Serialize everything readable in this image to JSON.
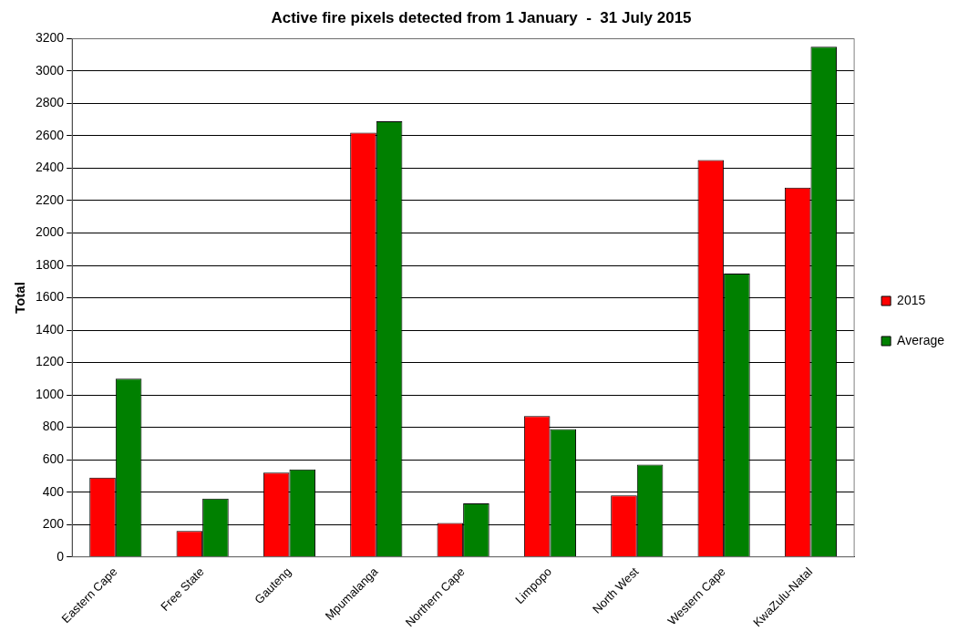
{
  "chart_data": {
    "type": "bar",
    "title": "Active fire pixels detected from 1 January  -  31 July 2015",
    "ylabel": "Total",
    "categories": [
      "Eastern Cape",
      "Free State",
      "Gauteng",
      "Mpumalanga",
      "Northern Cape",
      "Limpopo",
      "North West",
      "Western Cape",
      "KwaZulu-Natal"
    ],
    "series": [
      {
        "name": "2015",
        "color": "#ff0000",
        "values": [
          490,
          160,
          520,
          2620,
          210,
          870,
          380,
          2450,
          2280
        ]
      },
      {
        "name": "Average",
        "color": "#008000",
        "values": [
          1100,
          360,
          540,
          2690,
          330,
          790,
          570,
          1750,
          3150
        ]
      }
    ],
    "ylim": [
      0,
      3200
    ],
    "yticks": [
      0,
      200,
      400,
      600,
      800,
      1000,
      1200,
      1400,
      1600,
      1800,
      2000,
      2200,
      2400,
      2600,
      2800,
      3000,
      3200
    ],
    "grid": "y",
    "legend": "right"
  }
}
